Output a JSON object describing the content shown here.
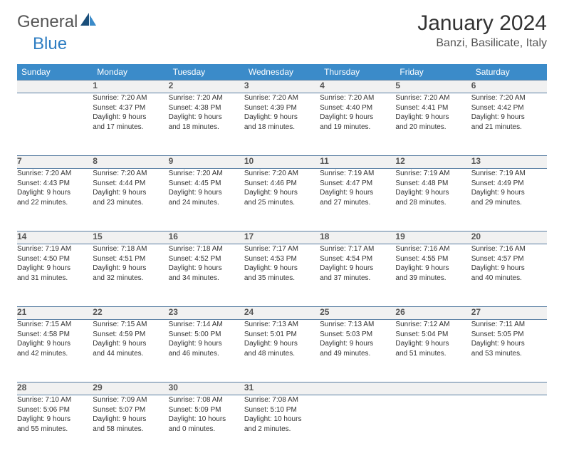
{
  "logo": {
    "general": "General",
    "blue": "Blue"
  },
  "title": "January 2024",
  "location": "Banzi, Basilicate, Italy",
  "day_headers": [
    "Sunday",
    "Monday",
    "Tuesday",
    "Wednesday",
    "Thursday",
    "Friday",
    "Saturday"
  ],
  "colors": {
    "header_bg": "#3b8bc9",
    "header_text": "#ffffff",
    "daynum_bg": "#f1f1f1",
    "daynum_border": "#5a7fa3",
    "logo_blue": "#2f7ec2",
    "logo_dark": "#1a4e7a"
  },
  "weeks": [
    [
      {
        "num": "",
        "lines": []
      },
      {
        "num": "1",
        "lines": [
          "Sunrise: 7:20 AM",
          "Sunset: 4:37 PM",
          "Daylight: 9 hours",
          "and 17 minutes."
        ]
      },
      {
        "num": "2",
        "lines": [
          "Sunrise: 7:20 AM",
          "Sunset: 4:38 PM",
          "Daylight: 9 hours",
          "and 18 minutes."
        ]
      },
      {
        "num": "3",
        "lines": [
          "Sunrise: 7:20 AM",
          "Sunset: 4:39 PM",
          "Daylight: 9 hours",
          "and 18 minutes."
        ]
      },
      {
        "num": "4",
        "lines": [
          "Sunrise: 7:20 AM",
          "Sunset: 4:40 PM",
          "Daylight: 9 hours",
          "and 19 minutes."
        ]
      },
      {
        "num": "5",
        "lines": [
          "Sunrise: 7:20 AM",
          "Sunset: 4:41 PM",
          "Daylight: 9 hours",
          "and 20 minutes."
        ]
      },
      {
        "num": "6",
        "lines": [
          "Sunrise: 7:20 AM",
          "Sunset: 4:42 PM",
          "Daylight: 9 hours",
          "and 21 minutes."
        ]
      }
    ],
    [
      {
        "num": "7",
        "lines": [
          "Sunrise: 7:20 AM",
          "Sunset: 4:43 PM",
          "Daylight: 9 hours",
          "and 22 minutes."
        ]
      },
      {
        "num": "8",
        "lines": [
          "Sunrise: 7:20 AM",
          "Sunset: 4:44 PM",
          "Daylight: 9 hours",
          "and 23 minutes."
        ]
      },
      {
        "num": "9",
        "lines": [
          "Sunrise: 7:20 AM",
          "Sunset: 4:45 PM",
          "Daylight: 9 hours",
          "and 24 minutes."
        ]
      },
      {
        "num": "10",
        "lines": [
          "Sunrise: 7:20 AM",
          "Sunset: 4:46 PM",
          "Daylight: 9 hours",
          "and 25 minutes."
        ]
      },
      {
        "num": "11",
        "lines": [
          "Sunrise: 7:19 AM",
          "Sunset: 4:47 PM",
          "Daylight: 9 hours",
          "and 27 minutes."
        ]
      },
      {
        "num": "12",
        "lines": [
          "Sunrise: 7:19 AM",
          "Sunset: 4:48 PM",
          "Daylight: 9 hours",
          "and 28 minutes."
        ]
      },
      {
        "num": "13",
        "lines": [
          "Sunrise: 7:19 AM",
          "Sunset: 4:49 PM",
          "Daylight: 9 hours",
          "and 29 minutes."
        ]
      }
    ],
    [
      {
        "num": "14",
        "lines": [
          "Sunrise: 7:19 AM",
          "Sunset: 4:50 PM",
          "Daylight: 9 hours",
          "and 31 minutes."
        ]
      },
      {
        "num": "15",
        "lines": [
          "Sunrise: 7:18 AM",
          "Sunset: 4:51 PM",
          "Daylight: 9 hours",
          "and 32 minutes."
        ]
      },
      {
        "num": "16",
        "lines": [
          "Sunrise: 7:18 AM",
          "Sunset: 4:52 PM",
          "Daylight: 9 hours",
          "and 34 minutes."
        ]
      },
      {
        "num": "17",
        "lines": [
          "Sunrise: 7:17 AM",
          "Sunset: 4:53 PM",
          "Daylight: 9 hours",
          "and 35 minutes."
        ]
      },
      {
        "num": "18",
        "lines": [
          "Sunrise: 7:17 AM",
          "Sunset: 4:54 PM",
          "Daylight: 9 hours",
          "and 37 minutes."
        ]
      },
      {
        "num": "19",
        "lines": [
          "Sunrise: 7:16 AM",
          "Sunset: 4:55 PM",
          "Daylight: 9 hours",
          "and 39 minutes."
        ]
      },
      {
        "num": "20",
        "lines": [
          "Sunrise: 7:16 AM",
          "Sunset: 4:57 PM",
          "Daylight: 9 hours",
          "and 40 minutes."
        ]
      }
    ],
    [
      {
        "num": "21",
        "lines": [
          "Sunrise: 7:15 AM",
          "Sunset: 4:58 PM",
          "Daylight: 9 hours",
          "and 42 minutes."
        ]
      },
      {
        "num": "22",
        "lines": [
          "Sunrise: 7:15 AM",
          "Sunset: 4:59 PM",
          "Daylight: 9 hours",
          "and 44 minutes."
        ]
      },
      {
        "num": "23",
        "lines": [
          "Sunrise: 7:14 AM",
          "Sunset: 5:00 PM",
          "Daylight: 9 hours",
          "and 46 minutes."
        ]
      },
      {
        "num": "24",
        "lines": [
          "Sunrise: 7:13 AM",
          "Sunset: 5:01 PM",
          "Daylight: 9 hours",
          "and 48 minutes."
        ]
      },
      {
        "num": "25",
        "lines": [
          "Sunrise: 7:13 AM",
          "Sunset: 5:03 PM",
          "Daylight: 9 hours",
          "and 49 minutes."
        ]
      },
      {
        "num": "26",
        "lines": [
          "Sunrise: 7:12 AM",
          "Sunset: 5:04 PM",
          "Daylight: 9 hours",
          "and 51 minutes."
        ]
      },
      {
        "num": "27",
        "lines": [
          "Sunrise: 7:11 AM",
          "Sunset: 5:05 PM",
          "Daylight: 9 hours",
          "and 53 minutes."
        ]
      }
    ],
    [
      {
        "num": "28",
        "lines": [
          "Sunrise: 7:10 AM",
          "Sunset: 5:06 PM",
          "Daylight: 9 hours",
          "and 55 minutes."
        ]
      },
      {
        "num": "29",
        "lines": [
          "Sunrise: 7:09 AM",
          "Sunset: 5:07 PM",
          "Daylight: 9 hours",
          "and 58 minutes."
        ]
      },
      {
        "num": "30",
        "lines": [
          "Sunrise: 7:08 AM",
          "Sunset: 5:09 PM",
          "Daylight: 10 hours",
          "and 0 minutes."
        ]
      },
      {
        "num": "31",
        "lines": [
          "Sunrise: 7:08 AM",
          "Sunset: 5:10 PM",
          "Daylight: 10 hours",
          "and 2 minutes."
        ]
      },
      {
        "num": "",
        "lines": []
      },
      {
        "num": "",
        "lines": []
      },
      {
        "num": "",
        "lines": []
      }
    ]
  ]
}
